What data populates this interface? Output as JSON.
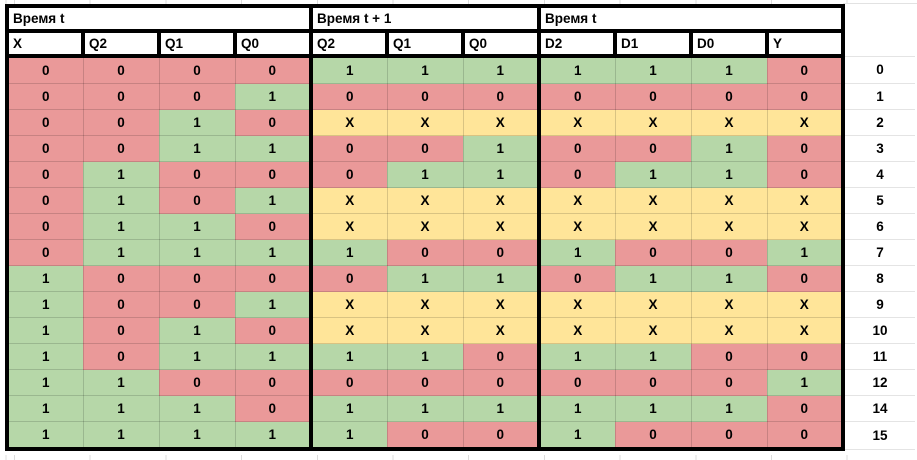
{
  "sheet": {
    "groups": [
      {
        "label": "Время t",
        "columns": [
          "X",
          "Q2",
          "Q1",
          "Q0"
        ]
      },
      {
        "label": "Время t + 1",
        "columns": [
          "Q2",
          "Q1",
          "Q0"
        ]
      },
      {
        "label": "Время t",
        "columns": [
          "D2",
          "D1",
          "D0",
          "Y"
        ]
      }
    ],
    "value_colors": {
      "0": "#ea9999",
      "1": "#b6d7a8",
      "X": "#ffe599"
    },
    "rows": [
      {
        "num": "0",
        "cells": [
          "0",
          "0",
          "0",
          "0",
          "1",
          "1",
          "1",
          "1",
          "1",
          "1",
          "0"
        ]
      },
      {
        "num": "1",
        "cells": [
          "0",
          "0",
          "0",
          "1",
          "0",
          "0",
          "0",
          "0",
          "0",
          "0",
          "0"
        ]
      },
      {
        "num": "2",
        "cells": [
          "0",
          "0",
          "1",
          "0",
          "X",
          "X",
          "X",
          "X",
          "X",
          "X",
          "X"
        ]
      },
      {
        "num": "3",
        "cells": [
          "0",
          "0",
          "1",
          "1",
          "0",
          "0",
          "1",
          "0",
          "0",
          "1",
          "0"
        ]
      },
      {
        "num": "4",
        "cells": [
          "0",
          "1",
          "0",
          "0",
          "0",
          "1",
          "1",
          "0",
          "1",
          "1",
          "0"
        ]
      },
      {
        "num": "5",
        "cells": [
          "0",
          "1",
          "0",
          "1",
          "X",
          "X",
          "X",
          "X",
          "X",
          "X",
          "X"
        ]
      },
      {
        "num": "6",
        "cells": [
          "0",
          "1",
          "1",
          "0",
          "X",
          "X",
          "X",
          "X",
          "X",
          "X",
          "X"
        ]
      },
      {
        "num": "7",
        "cells": [
          "0",
          "1",
          "1",
          "1",
          "1",
          "0",
          "0",
          "1",
          "0",
          "0",
          "1"
        ]
      },
      {
        "num": "8",
        "cells": [
          "1",
          "0",
          "0",
          "0",
          "0",
          "1",
          "1",
          "0",
          "1",
          "1",
          "0"
        ]
      },
      {
        "num": "9",
        "cells": [
          "1",
          "0",
          "0",
          "1",
          "X",
          "X",
          "X",
          "X",
          "X",
          "X",
          "X"
        ]
      },
      {
        "num": "10",
        "cells": [
          "1",
          "0",
          "1",
          "0",
          "X",
          "X",
          "X",
          "X",
          "X",
          "X",
          "X"
        ]
      },
      {
        "num": "11",
        "cells": [
          "1",
          "0",
          "1",
          "1",
          "1",
          "1",
          "0",
          "1",
          "1",
          "0",
          "0"
        ]
      },
      {
        "num": "12",
        "cells": [
          "1",
          "1",
          "0",
          "0",
          "0",
          "0",
          "0",
          "0",
          "0",
          "0",
          "1"
        ]
      },
      {
        "num": "14",
        "cells": [
          "1",
          "1",
          "1",
          "0",
          "1",
          "1",
          "1",
          "1",
          "1",
          "1",
          "0"
        ]
      },
      {
        "num": "15",
        "cells": [
          "1",
          "1",
          "1",
          "1",
          "1",
          "0",
          "0",
          "1",
          "0",
          "0",
          "0"
        ]
      }
    ]
  }
}
